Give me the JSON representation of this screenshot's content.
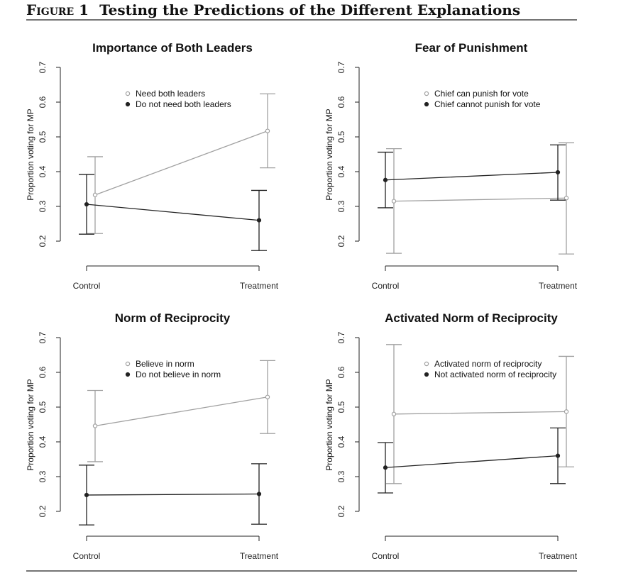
{
  "figure": {
    "label": "Figure 1",
    "title": "Testing the Predictions of the Different Explanations"
  },
  "chart_data": [
    {
      "type": "line",
      "title": "Importance of Both Leaders",
      "ylabel": "Proportion voting for MP",
      "xlabel": "",
      "categories": [
        "Control",
        "Treatment"
      ],
      "ylim": [
        0.2,
        0.7
      ],
      "yticks": [
        "0.2",
        "0.3",
        "0.4",
        "0.5",
        "0.6",
        "0.7"
      ],
      "grid": false,
      "legend_position": "top-center",
      "series": [
        {
          "name": "Need both leaders",
          "color": "#a0a0a0",
          "marker": "open-circle",
          "values": [
            0.333,
            0.517
          ],
          "ci_low": [
            0.222,
            0.411
          ],
          "ci_high": [
            0.443,
            0.624
          ]
        },
        {
          "name": "Do not need both leaders",
          "color": "#222222",
          "marker": "filled-circle",
          "values": [
            0.306,
            0.26
          ],
          "ci_low": [
            0.22,
            0.173
          ],
          "ci_high": [
            0.392,
            0.346
          ]
        }
      ]
    },
    {
      "type": "line",
      "title": "Fear of Punishment",
      "ylabel": "Proportion voting for MP",
      "xlabel": "",
      "categories": [
        "Control",
        "Treatment"
      ],
      "ylim": [
        0.2,
        0.7
      ],
      "yticks": [
        "0.2",
        "0.3",
        "0.4",
        "0.5",
        "0.6",
        "0.7"
      ],
      "grid": false,
      "legend_position": "top-center",
      "series": [
        {
          "name": "Chief can punish for vote",
          "color": "#a0a0a0",
          "marker": "open-circle",
          "values": [
            0.315,
            0.324
          ],
          "ci_low": [
            0.165,
            0.163
          ],
          "ci_high": [
            0.466,
            0.483
          ]
        },
        {
          "name": "Chief cannot punish for vote",
          "color": "#222222",
          "marker": "filled-circle",
          "values": [
            0.376,
            0.398
          ],
          "ci_low": [
            0.296,
            0.318
          ],
          "ci_high": [
            0.456,
            0.477
          ]
        }
      ]
    },
    {
      "type": "line",
      "title": "Norm of Reciprocity",
      "ylabel": "Proportion voting for MP",
      "xlabel": "",
      "categories": [
        "Control",
        "Treatment"
      ],
      "ylim": [
        0.2,
        0.7
      ],
      "yticks": [
        "0.2",
        "0.3",
        "0.4",
        "0.5",
        "0.6",
        "0.7"
      ],
      "grid": false,
      "legend_position": "top-center",
      "series": [
        {
          "name": "Believe in norm",
          "color": "#a0a0a0",
          "marker": "open-circle",
          "values": [
            0.446,
            0.529
          ],
          "ci_low": [
            0.343,
            0.424
          ],
          "ci_high": [
            0.548,
            0.634
          ]
        },
        {
          "name": "Do not believe in norm",
          "color": "#222222",
          "marker": "filled-circle",
          "values": [
            0.247,
            0.25
          ],
          "ci_low": [
            0.161,
            0.163
          ],
          "ci_high": [
            0.333,
            0.337
          ]
        }
      ]
    },
    {
      "type": "line",
      "title": "Activated Norm of Reciprocity",
      "ylabel": "Proportion voting for MP",
      "xlabel": "",
      "categories": [
        "Control",
        "Treatment"
      ],
      "ylim": [
        0.2,
        0.7
      ],
      "yticks": [
        "0.2",
        "0.3",
        "0.4",
        "0.5",
        "0.6",
        "0.7"
      ],
      "grid": false,
      "legend_position": "top-center",
      "series": [
        {
          "name": "Activated norm of reciprocity",
          "color": "#a0a0a0",
          "marker": "open-circle",
          "values": [
            0.48,
            0.487
          ],
          "ci_low": [
            0.28,
            0.328
          ],
          "ci_high": [
            0.68,
            0.646
          ]
        },
        {
          "name": "Not activated norm of reciprocity",
          "color": "#222222",
          "marker": "filled-circle",
          "values": [
            0.326,
            0.36
          ],
          "ci_low": [
            0.253,
            0.28
          ],
          "ci_high": [
            0.398,
            0.44
          ]
        }
      ]
    }
  ]
}
